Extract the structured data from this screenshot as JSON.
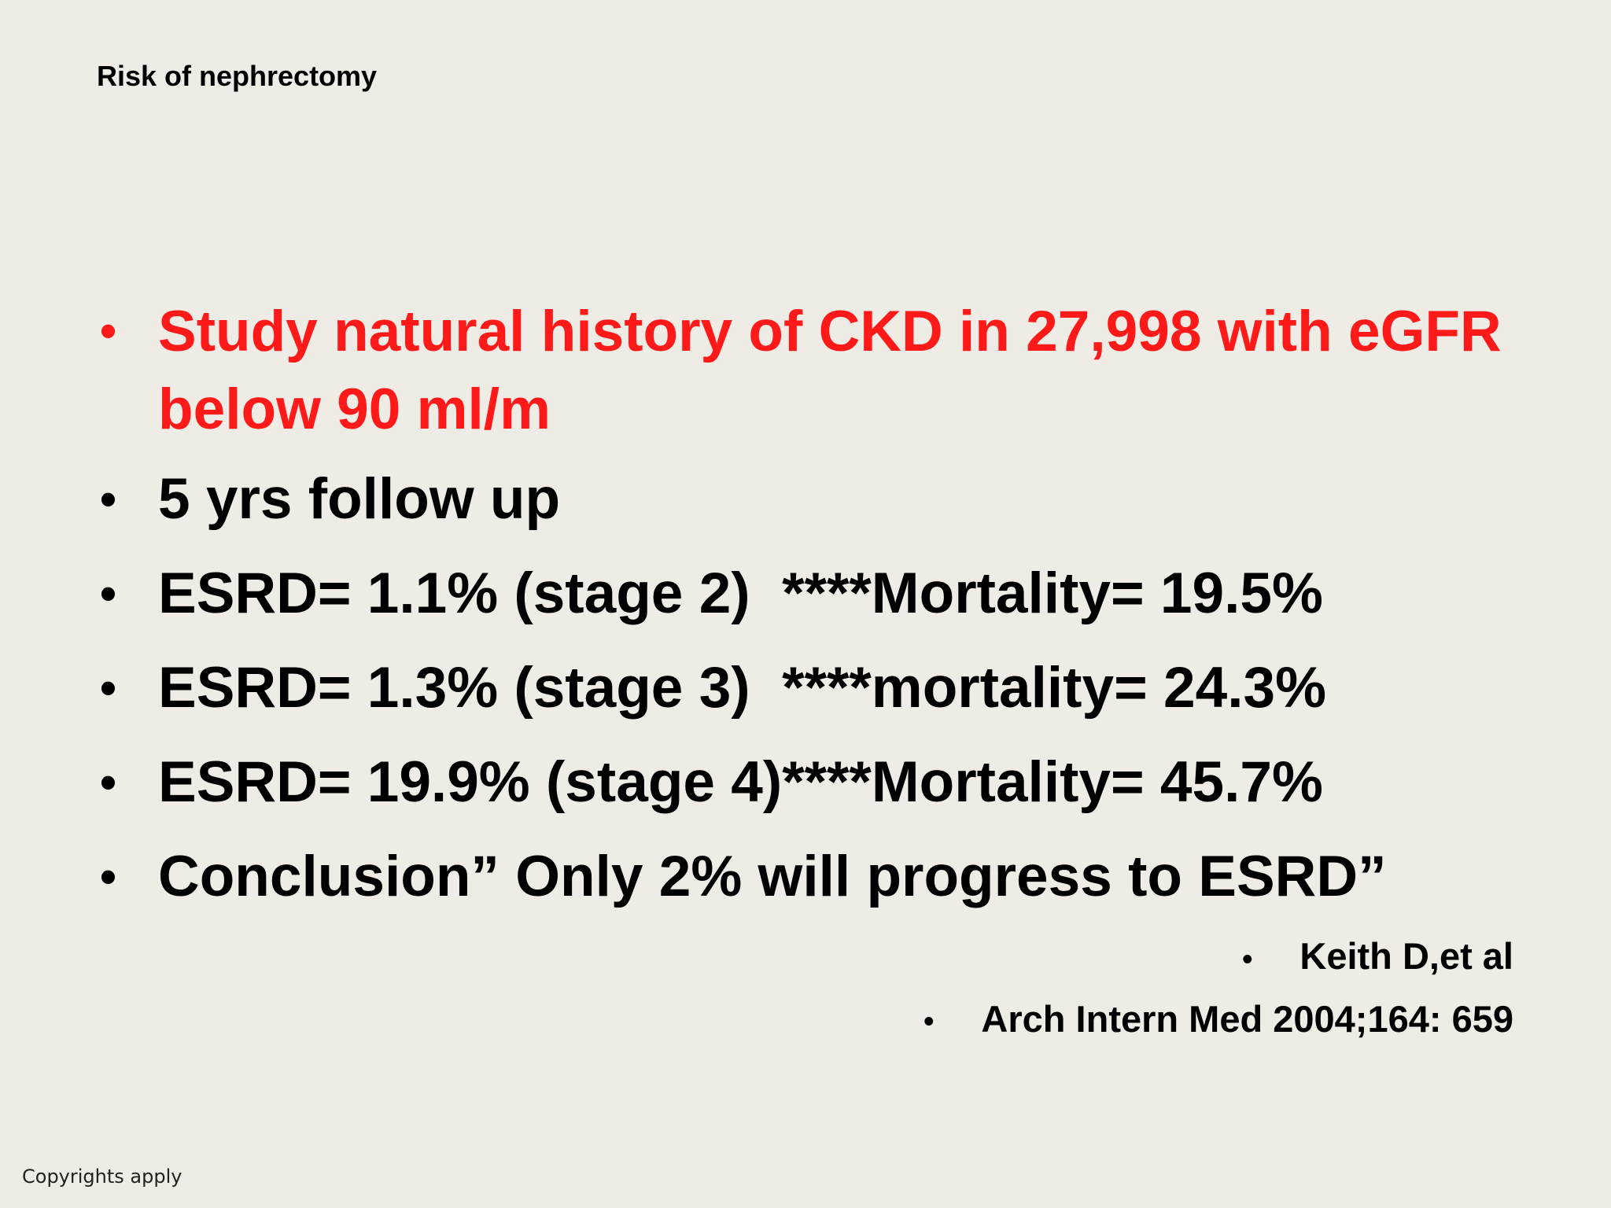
{
  "slide": {
    "title": "Risk of nephrectomy",
    "bullets": [
      {
        "text": "Study natural history of CKD in 27,998 with eGFR below 90 ml/m",
        "emphasis": "red"
      },
      {
        "text": "5 yrs follow up"
      },
      {
        "text": "ESRD= 1.1% (stage 2)  ****Mortality= 19.5%"
      },
      {
        "text": "ESRD= 1.3% (stage 3)  ****mortality= 24.3%"
      },
      {
        "text": "ESRD= 19.9% (stage 4)****Mortality= 45.7%"
      },
      {
        "text": "Conclusion” Only 2% will progress to ESRD”"
      }
    ],
    "references": [
      "Keith D,et al",
      "Arch Intern Med 2004;164: 659"
    ],
    "bullet_glyph": "•",
    "footer": "Copyrights apply",
    "colors": {
      "background": "#efebe5",
      "text": "#000000",
      "highlight": "#ff1a1a"
    }
  }
}
